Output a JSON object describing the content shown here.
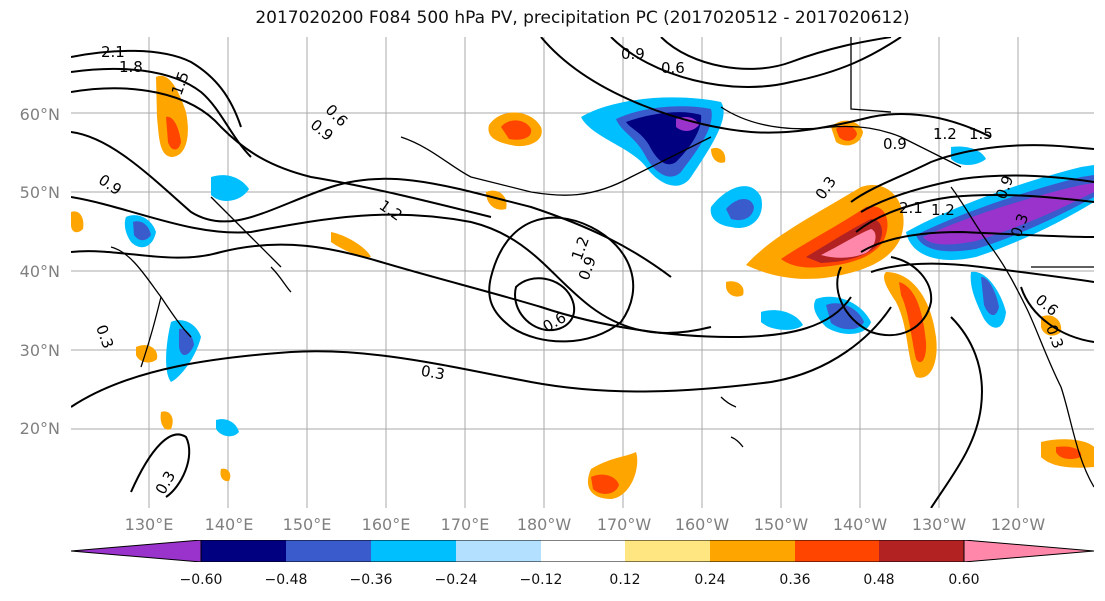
{
  "title": "2017020200 F084 500 hPa PV, precipitation PC (2017020512 - 2017020612)",
  "lat_labels": [
    "60°N",
    "50°N",
    "40°N",
    "30°N",
    "20°N"
  ],
  "lon_labels": [
    "130°E",
    "140°E",
    "150°E",
    "160°E",
    "170°E",
    "180°W",
    "170°W",
    "160°W",
    "150°W",
    "140°W",
    "130°W",
    "120°W"
  ],
  "contour_labels": [
    "2.1",
    "1.8",
    "1.5",
    "0.9",
    "0.6",
    "0.9",
    "1.2",
    "0.9",
    "0.6",
    "1.2",
    "0.9",
    "0.6",
    "0.3",
    "0.3",
    "0.3",
    "0.3",
    "0.9",
    "1.2",
    "1.5",
    "2.1",
    "1.2",
    "0.9",
    "0.3",
    "0.6",
    "0.3"
  ],
  "colorbar": {
    "ticks": [
      "−0.60",
      "−0.48",
      "−0.36",
      "−0.24",
      "−0.12",
      "0.12",
      "0.24",
      "0.36",
      "0.48",
      "0.60"
    ],
    "colors": [
      "#9933cc",
      "#000080",
      "#3a5bcc",
      "#00bfff",
      "#b3e0ff",
      "#ffffff",
      "#ffe680",
      "#ffa500",
      "#ff4500",
      "#b22222",
      "#ff88aa"
    ]
  },
  "map_style": {
    "coastline_color": "#000000",
    "contour_color": "#000000",
    "grid_color": "#aaaaaa",
    "fields": [
      "500 hPa PV contours",
      "precipitation PC shading"
    ]
  }
}
